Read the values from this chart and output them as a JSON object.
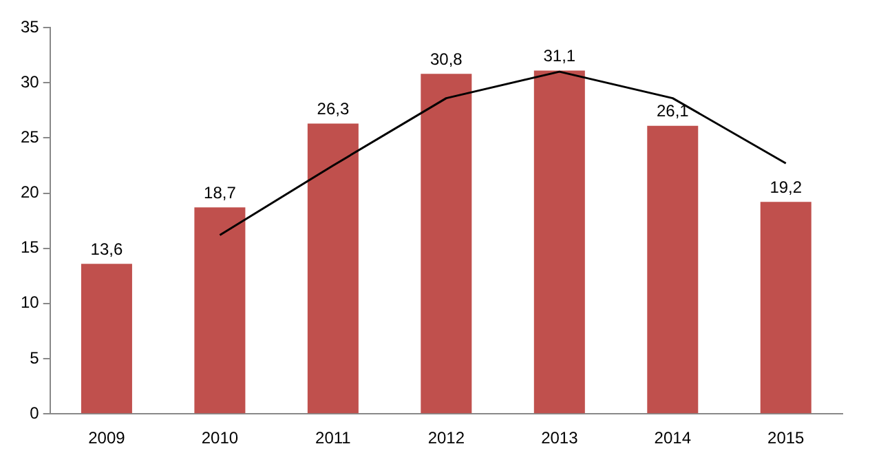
{
  "chart_data": {
    "type": "bar",
    "categories": [
      "2009",
      "2010",
      "2011",
      "2012",
      "2013",
      "2014",
      "2015"
    ],
    "series": [
      {
        "color": "#c0504d",
        "values": [
          13.6,
          18.7,
          26.3,
          30.8,
          31.1,
          26.1,
          19.2
        ],
        "value_labels": [
          "13,6",
          "18,7",
          "26,3",
          "30,8",
          "31,1",
          "26,1",
          "19,2"
        ]
      },
      {
        "type": "line",
        "color": "#000000",
        "values": [
          null,
          16.2,
          22.5,
          28.6,
          31.0,
          28.6,
          22.7
        ]
      }
    ],
    "ylim": [
      0,
      35
    ],
    "yticks": [
      0,
      5,
      10,
      15,
      20,
      25,
      30,
      35
    ],
    "grid": false,
    "legend": false,
    "marker": "none",
    "line_style": "solid"
  }
}
